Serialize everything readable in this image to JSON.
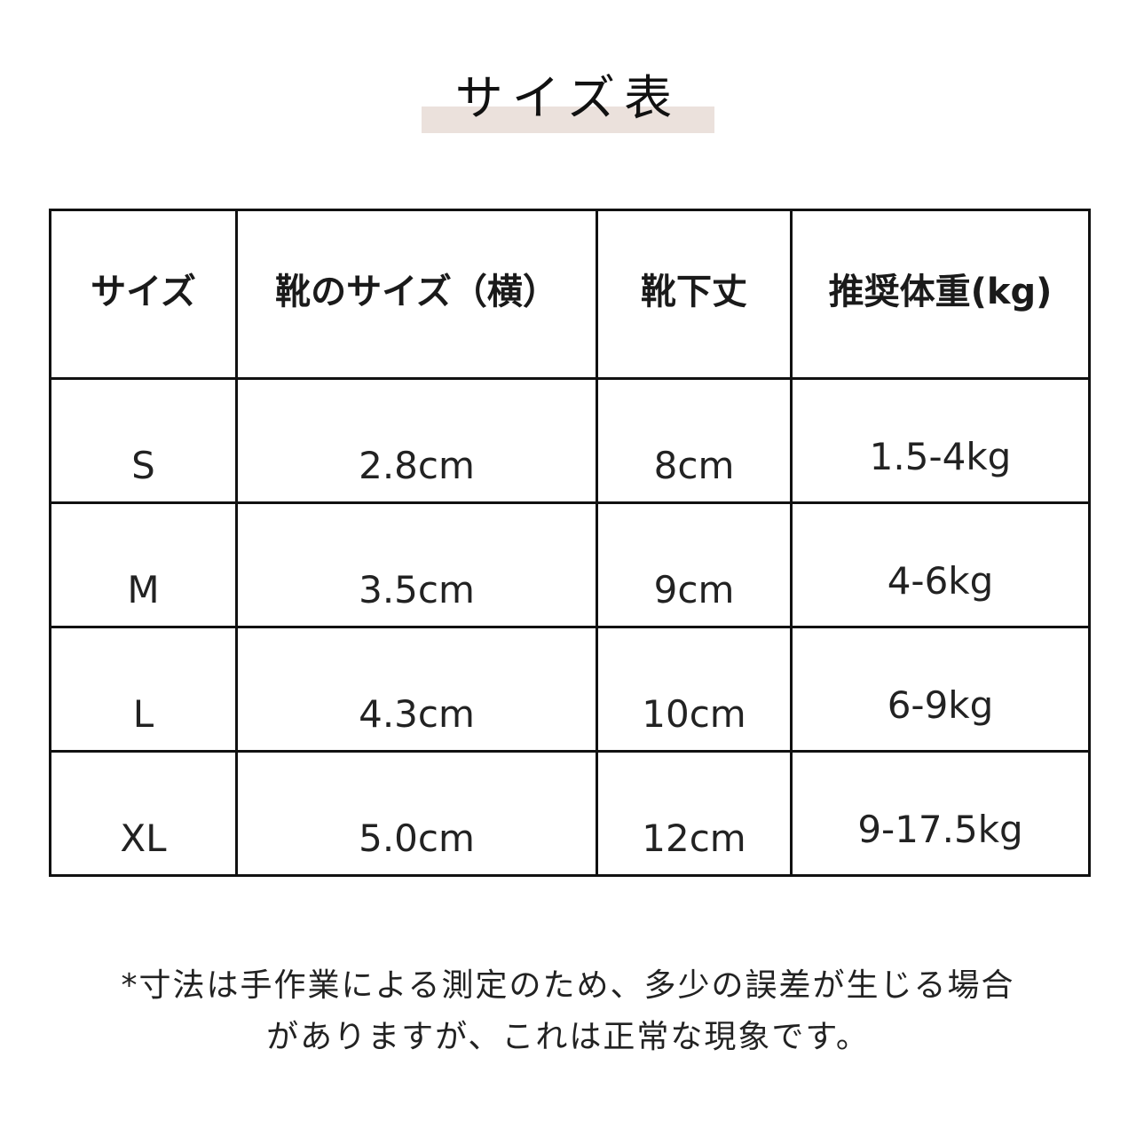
{
  "title": "サイズ表",
  "colors": {
    "title_underline": "#ebe1dc",
    "border": "#111111"
  },
  "table": {
    "headers": [
      "サイズ",
      "靴のサイズ（横）",
      "靴下丈",
      "推奨体重(kg)"
    ],
    "rows": [
      [
        "S",
        "2.8cm",
        "8cm",
        "1.5-4kg"
      ],
      [
        "M",
        "3.5cm",
        "9cm",
        "4-6kg"
      ],
      [
        "L",
        "4.3cm",
        "10cm",
        "6-9kg"
      ],
      [
        "XL",
        "5.0cm",
        "12cm",
        "9-17.5kg"
      ]
    ]
  },
  "note": {
    "line1": "*寸法は手作業による測定のため、多少の誤差が生じる場合",
    "line2": "がありますが、これは正常な現象です。"
  }
}
